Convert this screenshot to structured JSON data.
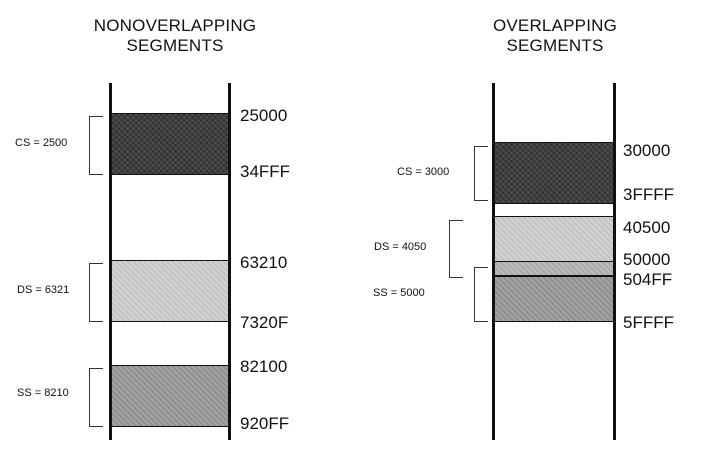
{
  "left_panel": {
    "title_line1": "NONOVERLAPPING",
    "title_line2": "SEGMENTS",
    "segments": [
      {
        "register": "CS = 2500",
        "start": "25000",
        "end": "34FFF",
        "shade": "dark"
      },
      {
        "register": "DS = 6321",
        "start": "63210",
        "end": "7320F",
        "shade": "light"
      },
      {
        "register": "SS = 8210",
        "start": "82100",
        "end": "920FF",
        "shade": "mid"
      }
    ]
  },
  "right_panel": {
    "title_line1": "OVERLAPPING",
    "title_line2": "SEGMENTS",
    "segments": [
      {
        "register": "CS = 3000",
        "start": "30000",
        "end": "3FFFF",
        "shade": "dark"
      },
      {
        "register": "DS = 4050",
        "start": "40500",
        "end": "504FF",
        "shade": "light"
      },
      {
        "register": "SS = 5000",
        "start": "50000",
        "end": "5FFFF",
        "shade": "mid"
      }
    ]
  },
  "colors": {
    "dark": "#3a3a3a",
    "light": "#cdcdcd",
    "mid": "#9a9a9a",
    "line": "#111111"
  }
}
